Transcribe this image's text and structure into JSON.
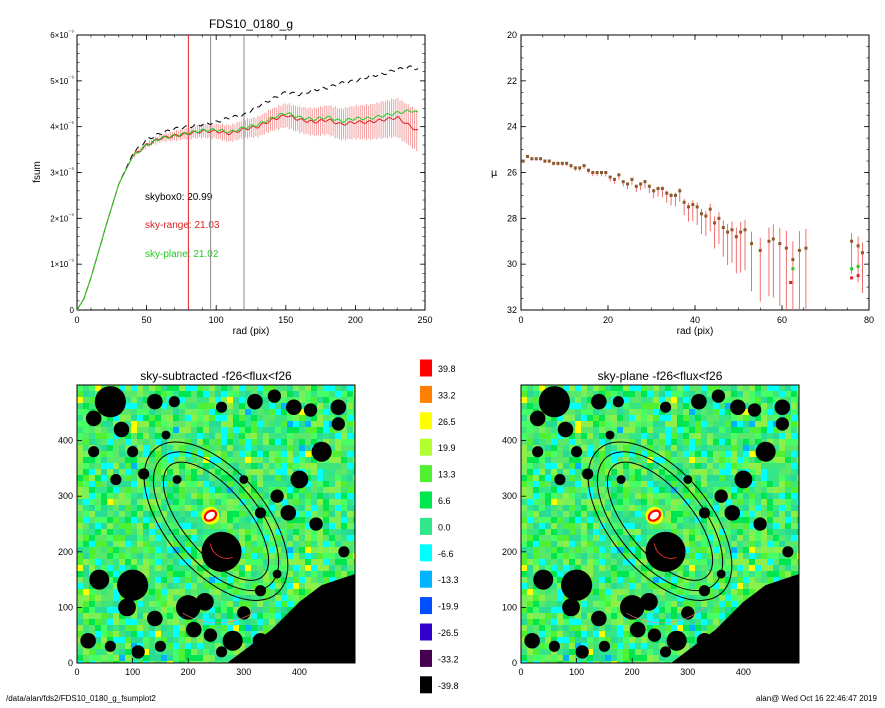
{
  "footer": {
    "path": "/data/alan/fds2/FDS10_0180_g_fsumplot2",
    "stamp": "alan@  Wed Oct 16 22:46:47 2019"
  },
  "chart_data": [
    {
      "type": "line",
      "title": "FDS10_0180_g",
      "xlabel": "rad (pix)",
      "ylabel": "fsum",
      "xlim": [
        0,
        250
      ],
      "ylim": [
        0,
        6e-09
      ],
      "x_ticks": [
        "0",
        "50",
        "100",
        "150",
        "200",
        "250"
      ],
      "y_ticks": [
        "0",
        "1×10⁻⁹",
        "2×10⁻⁹",
        "3×10⁻⁹",
        "4×10⁻⁹",
        "5×10⁻⁹",
        "6×10⁻⁹"
      ],
      "vertical_lines": [
        {
          "x": 80,
          "color": "#e02020"
        },
        {
          "x": 96,
          "color": "#888888"
        },
        {
          "x": 120,
          "color": "#888888"
        }
      ],
      "annotations": [
        {
          "text": "skybox0: 20.99",
          "color": "#000000"
        },
        {
          "text": "sky-range: 21.03",
          "color": "#e02020"
        },
        {
          "text": "sky-plane: 21.02",
          "color": "#22cc22"
        }
      ],
      "series": [
        {
          "style": "dashed",
          "color": "#000000",
          "x": [
            0,
            5,
            10,
            20,
            30,
            40,
            50,
            60,
            70,
            80,
            90,
            100,
            110,
            120,
            130,
            140,
            150,
            160,
            170,
            180,
            190,
            200,
            210,
            220,
            230,
            240,
            245
          ],
          "y": [
            0,
            2.5e-10,
            7e-10,
            1.75e-09,
            2.75e-09,
            3.4e-09,
            3.72e-09,
            3.85e-09,
            3.95e-09,
            4e-09,
            4.05e-09,
            4.1e-09,
            4.2e-09,
            4.25e-09,
            4.45e-09,
            4.6e-09,
            4.75e-09,
            4.7e-09,
            4.8e-09,
            4.85e-09,
            4.95e-09,
            5e-09,
            5.1e-09,
            5.15e-09,
            5.25e-09,
            5.3e-09,
            5.25e-09
          ]
        },
        {
          "style": "solid",
          "color": "#e02020",
          "x": [
            0,
            5,
            10,
            20,
            30,
            40,
            50,
            60,
            70,
            80,
            90,
            100,
            110,
            120,
            130,
            140,
            150,
            160,
            170,
            180,
            190,
            200,
            210,
            220,
            230,
            240,
            245
          ],
          "y": [
            0,
            2.5e-10,
            7e-10,
            1.75e-09,
            2.75e-09,
            3.35e-09,
            3.6e-09,
            3.75e-09,
            3.8e-09,
            3.85e-09,
            3.9e-09,
            3.9e-09,
            3.85e-09,
            3.95e-09,
            4e-09,
            4.15e-09,
            4.25e-09,
            4.15e-09,
            4.1e-09,
            4.15e-09,
            4.05e-09,
            4.1e-09,
            4.1e-09,
            4.15e-09,
            4.2e-09,
            4e-09,
            3.9e-09
          ],
          "err": [
            0,
            0,
            0,
            0,
            0,
            4e-11,
            6e-11,
            8e-11,
            1e-10,
            1.2e-10,
            1.4e-10,
            1.6e-10,
            1.8e-10,
            2e-10,
            2.2e-10,
            2.4e-10,
            2.6e-10,
            2.8e-10,
            3e-10,
            3.2e-10,
            3.4e-10,
            3.6e-10,
            3.8e-10,
            4e-10,
            4.2e-10,
            4.4e-10,
            4.5e-10
          ]
        },
        {
          "style": "solid",
          "color": "#22cc22",
          "x": [
            0,
            5,
            10,
            20,
            30,
            40,
            50,
            60,
            70,
            80,
            90,
            100,
            110,
            120,
            130,
            140,
            150,
            160,
            170,
            180,
            190,
            200,
            210,
            220,
            230,
            240,
            245
          ],
          "y": [
            0,
            2.5e-10,
            7e-10,
            1.75e-09,
            2.75e-09,
            3.35e-09,
            3.6e-09,
            3.75e-09,
            3.8e-09,
            3.86e-09,
            3.92e-09,
            3.93e-09,
            3.88e-09,
            3.98e-09,
            4.04e-09,
            4.19e-09,
            4.3e-09,
            4.2e-09,
            4.16e-09,
            4.21e-09,
            4.12e-09,
            4.18e-09,
            4.18e-09,
            4.24e-09,
            4.3e-09,
            4.35e-09,
            4.3e-09
          ]
        }
      ]
    },
    {
      "type": "scatter",
      "title": "",
      "xlabel": "rad (pix)",
      "ylabel": "μ",
      "xlim": [
        0,
        80
      ],
      "ylim": [
        32,
        20
      ],
      "x_ticks": [
        "0",
        "20",
        "40",
        "60",
        "80"
      ],
      "y_ticks": [
        "20",
        "22",
        "24",
        "26",
        "28",
        "30",
        "32"
      ],
      "series": [
        {
          "color": "#8b5a2b",
          "x": [
            0.5,
            1.5,
            2.5,
            3.5,
            4.5,
            5.5,
            6.5,
            7.5,
            8.5,
            9.5,
            10.5,
            11.5,
            12.5,
            13.5,
            14.5,
            15.5,
            16.5,
            17.5,
            18.5,
            19.5,
            20.5,
            21.5,
            22.5,
            23.5,
            24.5,
            25.5,
            26.5,
            27.5,
            28.5,
            29.5,
            30.5,
            31.5,
            32.5,
            33.5,
            34.5,
            35.5,
            36.5,
            37.5,
            38.5,
            39.5,
            40.5,
            41.5,
            42.5,
            43.5,
            44.5,
            45.5,
            46.5,
            47.5,
            48.5,
            49.5,
            50.5,
            51.5,
            53,
            55,
            57,
            58,
            59.5,
            61,
            62.5,
            64,
            65.5,
            76,
            77.5,
            78.5
          ],
          "y": [
            25.5,
            25.3,
            25.4,
            25.4,
            25.4,
            25.5,
            25.5,
            25.6,
            25.6,
            25.6,
            25.6,
            25.7,
            25.8,
            25.8,
            25.7,
            25.9,
            26.0,
            26.0,
            26.0,
            26.0,
            26.2,
            26.3,
            26.1,
            26.4,
            26.5,
            26.3,
            26.6,
            26.5,
            26.4,
            26.6,
            26.8,
            26.7,
            26.7,
            26.9,
            27.0,
            27.0,
            26.8,
            27.3,
            27.5,
            27.4,
            27.5,
            27.8,
            27.9,
            27.6,
            28.2,
            28.0,
            28.4,
            28.6,
            28.5,
            28.8,
            28.6,
            28.5,
            29.1,
            29.4,
            29.0,
            28.9,
            29.1,
            29.3,
            29.8,
            29.4,
            29.3,
            29.0,
            29.2,
            29.5
          ],
          "err": [
            0.05,
            0.05,
            0.05,
            0.05,
            0.05,
            0.06,
            0.06,
            0.06,
            0.07,
            0.07,
            0.07,
            0.08,
            0.08,
            0.08,
            0.09,
            0.09,
            0.1,
            0.1,
            0.1,
            0.11,
            0.12,
            0.12,
            0.13,
            0.13,
            0.14,
            0.15,
            0.16,
            0.17,
            0.18,
            0.19,
            0.2,
            0.22,
            0.24,
            0.26,
            0.28,
            0.3,
            0.3,
            0.35,
            0.4,
            0.45,
            0.5,
            0.55,
            0.55,
            0.6,
            0.7,
            0.7,
            0.8,
            0.9,
            0.9,
            1.0,
            1.1,
            1.1,
            1.3,
            1.4,
            1.5,
            1.6,
            1.7,
            1.9,
            2.0,
            2.1,
            2.1,
            0.9,
            1.0,
            1.1
          ]
        },
        {
          "color": "#22cc22",
          "x": [
            62.5,
            76,
            77.5
          ],
          "y": [
            30.2,
            30.2,
            30.1
          ],
          "err": [
            0,
            0,
            0
          ]
        },
        {
          "color": "#e02020",
          "x": [
            62,
            76,
            77.5
          ],
          "y": [
            30.8,
            30.6,
            30.5
          ],
          "err": [
            0,
            0,
            0
          ]
        }
      ]
    },
    {
      "type": "heatmap",
      "title": "sky-subtracted -f26<flux<f26",
      "xlim": [
        0,
        500
      ],
      "ylim": [
        0,
        500
      ],
      "x_ticks": [
        "0",
        "100",
        "200",
        "300",
        "400"
      ],
      "y_ticks": [
        "0",
        "100",
        "200",
        "300",
        "400"
      ],
      "galaxy_center": [
        240,
        265
      ],
      "ellipses_semi_axes": [
        [
          58,
          130
        ],
        [
          76,
          150
        ],
        [
          90,
          170
        ]
      ],
      "ellipse_angle_deg": 40
    },
    {
      "type": "heatmap",
      "title": "",
      "colorbar_labels": [
        "39.8",
        "33.2",
        "26.5",
        "19.9",
        "13.3",
        "6.6",
        "0.0",
        "-6.6",
        "-13.3",
        "-19.9",
        "-26.5",
        "-33.2",
        "-39.8"
      ],
      "colorbar_colors": [
        "#ff0000",
        "#ff7f00",
        "#ffff00",
        "#b4ff32",
        "#50f032",
        "#00e650",
        "#32e68c",
        "#00ffff",
        "#00b4ff",
        "#0050ff",
        "#3200c8",
        "#460050",
        "#000000"
      ]
    },
    {
      "type": "heatmap",
      "title": "sky-plane -f26<flux<f26",
      "xlim": [
        0,
        500
      ],
      "ylim": [
        0,
        500
      ],
      "x_ticks": [
        "0",
        "100",
        "200",
        "300",
        "400"
      ],
      "y_ticks": [
        "0",
        "100",
        "200",
        "300",
        "400"
      ],
      "galaxy_center": [
        240,
        265
      ],
      "ellipses_semi_axes": [
        [
          58,
          130
        ],
        [
          76,
          150
        ],
        [
          90,
          170
        ]
      ],
      "ellipse_angle_deg": 40
    }
  ]
}
